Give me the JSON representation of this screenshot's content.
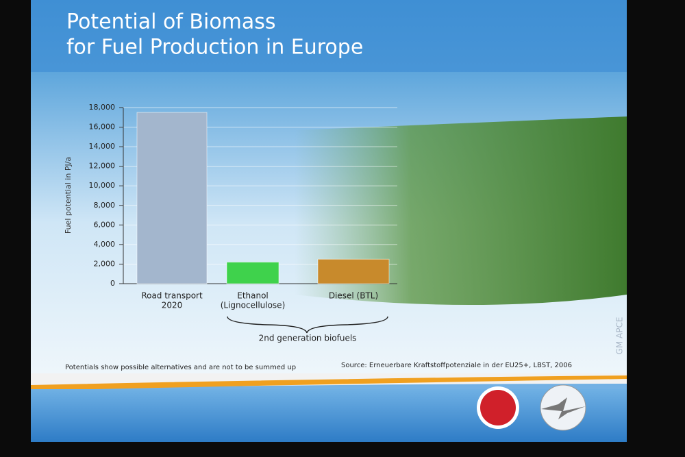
{
  "chart_data": {
    "type": "bar",
    "title": [
      "Potential of Biomass",
      "for Fuel Production in Europe"
    ],
    "y_label": "Fuel potential in PJ/a",
    "categories": [
      [
        "Road transport",
        "2020"
      ],
      [
        "Ethanol",
        "(Lignocellulose)"
      ],
      [
        "Diesel (BTL)"
      ]
    ],
    "values": [
      17500,
      2200,
      2500
    ],
    "colors": [
      "#a3b6cd",
      "#3fd24c",
      "#c88a2c"
    ],
    "ylim": [
      0,
      18000
    ],
    "yticks": [
      0,
      {
        "value": 2000,
        "label": "2,000"
      },
      {
        "value": 4000,
        "label": "4,000"
      },
      {
        "value": 6000,
        "label": "6,000"
      },
      {
        "value": 8000,
        "label": "8,000"
      },
      {
        "value": 10000,
        "label": "10,000"
      },
      {
        "value": 12000,
        "label": "12,000"
      },
      {
        "value": 14000,
        "label": "14,000"
      },
      {
        "value": 16000,
        "label": "16,000"
      },
      {
        "value": 18000,
        "label": "18,000"
      }
    ],
    "grid": true,
    "group_label": "2nd generation biofuels",
    "note": "Potentials show possible alternatives and are not to be summed up",
    "source": "Source: Erneuerbare  Kraftstoffpotenziale  in der EU25+, LBST, 2006",
    "side_label": "GM APCE"
  }
}
